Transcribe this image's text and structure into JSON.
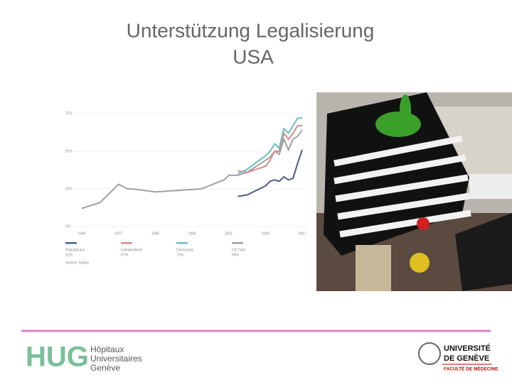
{
  "slide": {
    "title_lines": [
      "Unterstützung Legalisierung",
      "USA"
    ],
    "hug_logo": "HUG",
    "hug_lines": [
      "Hôpitaux",
      "Universitaires",
      "Genève"
    ],
    "unige_lines": [
      "UNIVERSITÉ",
      "DE GENÈVE"
    ],
    "faculty": "FACULTÉ DE MÉDECINE"
  },
  "chart_data": {
    "type": "line",
    "x": [
      1969,
      1972,
      1973,
      1977,
      1979,
      1980,
      1985,
      1995,
      2000,
      2001,
      2003,
      2005,
      2009,
      2010,
      2011,
      2012,
      2013,
      2014,
      2015,
      2016,
      2017
    ],
    "series": [
      {
        "name": "US Total",
        "color": "#a0a0a0",
        "values": [
          12,
          15,
          16,
          28,
          25,
          25,
          23,
          25,
          31,
          34,
          34,
          36,
          44,
          46,
          50,
          48,
          58,
          51,
          58,
          60,
          64
        ]
      },
      {
        "name": "Republicans",
        "color": "#4a5f8a",
        "values": [
          null,
          null,
          null,
          null,
          null,
          null,
          null,
          null,
          null,
          null,
          20,
          21,
          27,
          30,
          31,
          30,
          33,
          31,
          32,
          42,
          51
        ]
      },
      {
        "name": "Independents",
        "color": "#d98a84",
        "values": [
          null,
          null,
          null,
          null,
          null,
          null,
          null,
          null,
          null,
          null,
          37,
          36,
          40,
          44,
          50,
          50,
          62,
          58,
          62,
          67,
          67
        ]
      },
      {
        "name": "Democrats",
        "color": "#6bbcc4",
        "values": [
          null,
          null,
          null,
          null,
          null,
          null,
          null,
          null,
          null,
          null,
          35,
          38,
          47,
          50,
          55,
          52,
          65,
          62,
          67,
          72,
          72
        ]
      }
    ],
    "legend_order": [
      1,
      2,
      3,
      0
    ],
    "legend_values": [
      "51%",
      "67%",
      "72%",
      "64%"
    ],
    "xlim": [
      1969,
      2017
    ],
    "xticks": [
      1969,
      1977,
      1985,
      1993,
      2001,
      2009,
      2017
    ],
    "ylim": [
      0,
      75
    ],
    "yticks": [
      {
        "value": 0,
        "label": "0%"
      },
      {
        "value": 25,
        "label": "25%"
      },
      {
        "value": 50,
        "label": "50%"
      },
      {
        "value": 75,
        "label": "75%"
      }
    ],
    "grid": true,
    "source": "Source: Gallup"
  }
}
